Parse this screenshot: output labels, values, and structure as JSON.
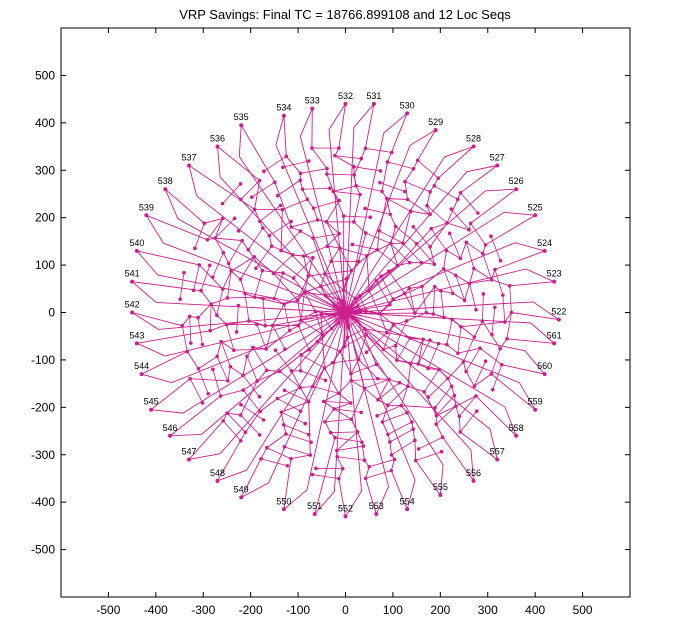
{
  "chart_data": {
    "type": "line",
    "title": "VRP Savings: Final TC = 18766.899108 and 12 Loc Seqs",
    "xlabel": "",
    "ylabel": "",
    "xlim": [
      -600,
      600
    ],
    "ylim": [
      -600,
      600
    ],
    "xticks": [
      -500,
      -400,
      -300,
      -200,
      -100,
      0,
      100,
      200,
      300,
      400,
      500
    ],
    "yticks": [
      500,
      400,
      300,
      200,
      100,
      0,
      -100,
      -200,
      -300,
      -400,
      -500
    ],
    "grid": false,
    "depot": [
      0,
      0
    ],
    "series_color": "#cc1f8c",
    "ring_radii": [
      350,
      330,
      310,
      290,
      270,
      250,
      230,
      210,
      190,
      170,
      150,
      130,
      110,
      90,
      70,
      50,
      30
    ],
    "notes_labels": {
      "outer": [
        {
          "label": "532",
          "x": 0,
          "y": 440
        },
        {
          "label": "533",
          "x": -70,
          "y": 430
        },
        {
          "label": "531",
          "x": 60,
          "y": 440
        },
        {
          "label": "534",
          "x": -130,
          "y": 415
        },
        {
          "label": "530",
          "x": 130,
          "y": 420
        },
        {
          "label": "535",
          "x": -220,
          "y": 395
        },
        {
          "label": "529",
          "x": 190,
          "y": 385
        },
        {
          "label": "536",
          "x": -270,
          "y": 350
        },
        {
          "label": "528",
          "x": 270,
          "y": 350
        },
        {
          "label": "537",
          "x": -330,
          "y": 310
        },
        {
          "label": "527",
          "x": 320,
          "y": 310
        },
        {
          "label": "538",
          "x": -380,
          "y": 260
        },
        {
          "label": "526",
          "x": 360,
          "y": 260
        },
        {
          "label": "539",
          "x": -420,
          "y": 205
        },
        {
          "label": "525",
          "x": 400,
          "y": 205
        },
        {
          "label": "540",
          "x": -440,
          "y": 130
        },
        {
          "label": "524",
          "x": 420,
          "y": 130
        },
        {
          "label": "541",
          "x": -450,
          "y": 65
        },
        {
          "label": "523",
          "x": 440,
          "y": 65
        },
        {
          "label": "542",
          "x": -450,
          "y": 0
        },
        {
          "label": "522",
          "x": 450,
          "y": -15
        },
        {
          "label": "543",
          "x": -440,
          "y": -65
        },
        {
          "label": "561",
          "x": 440,
          "y": -65
        },
        {
          "label": "544",
          "x": -430,
          "y": -130
        },
        {
          "label": "560",
          "x": 420,
          "y": -130
        },
        {
          "label": "545",
          "x": -410,
          "y": -205
        },
        {
          "label": "559",
          "x": 400,
          "y": -205
        },
        {
          "label": "546",
          "x": -370,
          "y": -260
        },
        {
          "label": "558",
          "x": 360,
          "y": -260
        },
        {
          "label": "547",
          "x": -330,
          "y": -310
        },
        {
          "label": "557",
          "x": 320,
          "y": -310
        },
        {
          "label": "548",
          "x": -270,
          "y": -355
        },
        {
          "label": "556",
          "x": 270,
          "y": -355
        },
        {
          "label": "549",
          "x": -220,
          "y": -390
        },
        {
          "label": "555",
          "x": 200,
          "y": -385
        },
        {
          "label": "550",
          "x": -130,
          "y": -415
        },
        {
          "label": "554",
          "x": 130,
          "y": -415
        },
        {
          "label": "551",
          "x": -65,
          "y": -425
        },
        {
          "label": "553",
          "x": 65,
          "y": -425
        },
        {
          "label": "552",
          "x": 0,
          "y": -430
        }
      ]
    }
  }
}
